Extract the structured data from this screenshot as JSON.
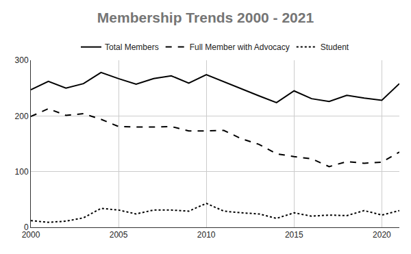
{
  "chart_data": {
    "type": "line",
    "title": "Membership Trends 2000 - 2021",
    "x": [
      2000,
      2001,
      2002,
      2003,
      2004,
      2005,
      2006,
      2007,
      2008,
      2009,
      2010,
      2011,
      2012,
      2013,
      2014,
      2015,
      2016,
      2017,
      2018,
      2019,
      2020,
      2021
    ],
    "series": [
      {
        "name": "Total Members",
        "color": "#000000",
        "line_style": "solid",
        "values": [
          247,
          262,
          250,
          258,
          278,
          267,
          257,
          267,
          272,
          259,
          274,
          261,
          248,
          236,
          224,
          245,
          231,
          226,
          237,
          232,
          228,
          258
        ]
      },
      {
        "name": "Full Member with Advocacy",
        "color": "#000000",
        "line_style": "dash",
        "values": [
          199,
          213,
          201,
          204,
          194,
          181,
          180,
          180,
          181,
          173,
          173,
          174,
          159,
          149,
          132,
          127,
          123,
          109,
          118,
          115,
          117,
          135
        ]
      },
      {
        "name": "Student",
        "color": "#000000",
        "line_style": "dot",
        "values": [
          12,
          9,
          11,
          17,
          34,
          31,
          24,
          31,
          31,
          29,
          43,
          29,
          26,
          24,
          16,
          26,
          20,
          22,
          21,
          30,
          22,
          30
        ]
      }
    ],
    "xlim": [
      2000,
      2021
    ],
    "xticks": [
      2000,
      2005,
      2010,
      2015,
      2020
    ],
    "ylim": [
      0,
      300
    ],
    "yticks": [
      0,
      100,
      200,
      300
    ],
    "grid": true,
    "legend": "top"
  }
}
